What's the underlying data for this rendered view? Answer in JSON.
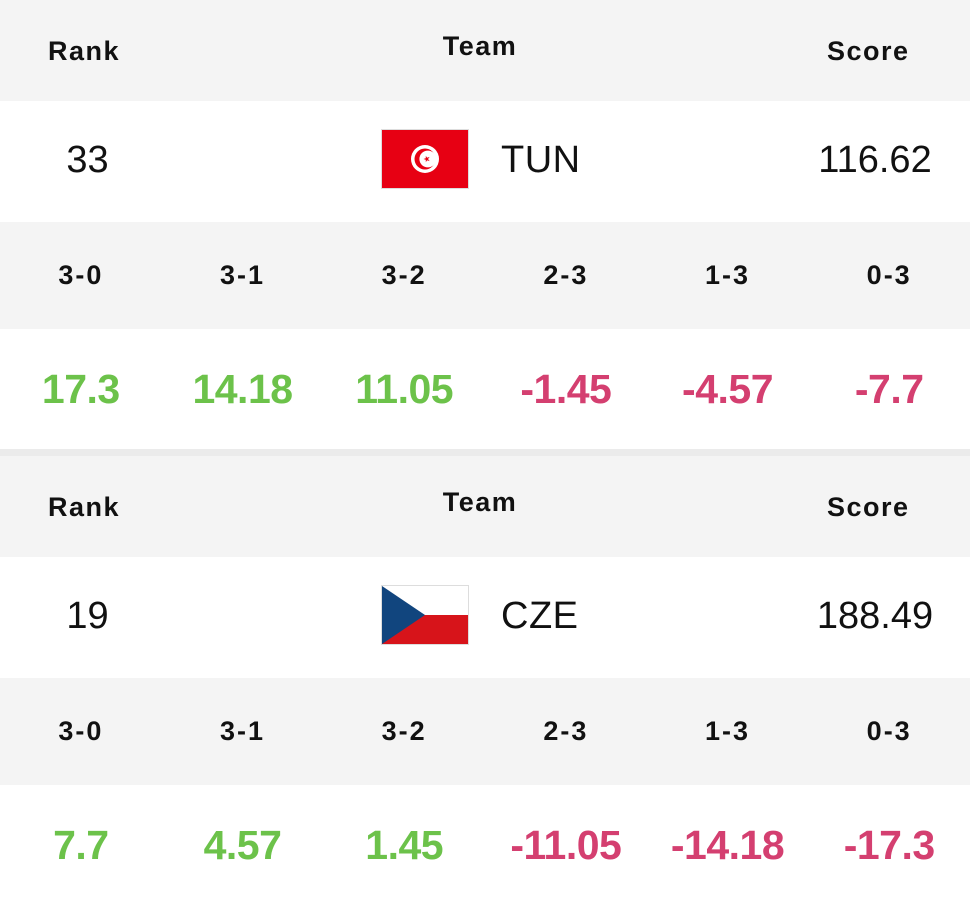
{
  "colors": {
    "positive": "#6cc24a",
    "negative": "#d43f70",
    "header_bg": "#f4f4f4"
  },
  "cards": [
    {
      "headers": {
        "rank": "Rank",
        "team": "Team",
        "score": "Score"
      },
      "rank": "33",
      "flag_icon": "tunisia-flag-icon",
      "team": "TUN",
      "score": "116.62",
      "outcomes": [
        {
          "label": "3-0",
          "value": "17.3",
          "sign": "positive"
        },
        {
          "label": "3-1",
          "value": "14.18",
          "sign": "positive"
        },
        {
          "label": "3-2",
          "value": "11.05",
          "sign": "positive"
        },
        {
          "label": "2-3",
          "value": "-1.45",
          "sign": "negative"
        },
        {
          "label": "1-3",
          "value": "-4.57",
          "sign": "negative"
        },
        {
          "label": "0-3",
          "value": "-7.7",
          "sign": "negative"
        }
      ]
    },
    {
      "headers": {
        "rank": "Rank",
        "team": "Team",
        "score": "Score"
      },
      "rank": "19",
      "flag_icon": "czech-flag-icon",
      "team": "CZE",
      "score": "188.49",
      "outcomes": [
        {
          "label": "3-0",
          "value": "7.7",
          "sign": "positive"
        },
        {
          "label": "3-1",
          "value": "4.57",
          "sign": "positive"
        },
        {
          "label": "3-2",
          "value": "1.45",
          "sign": "positive"
        },
        {
          "label": "2-3",
          "value": "-11.05",
          "sign": "negative"
        },
        {
          "label": "1-3",
          "value": "-14.18",
          "sign": "negative"
        },
        {
          "label": "0-3",
          "value": "-17.3",
          "sign": "negative"
        }
      ]
    }
  ]
}
